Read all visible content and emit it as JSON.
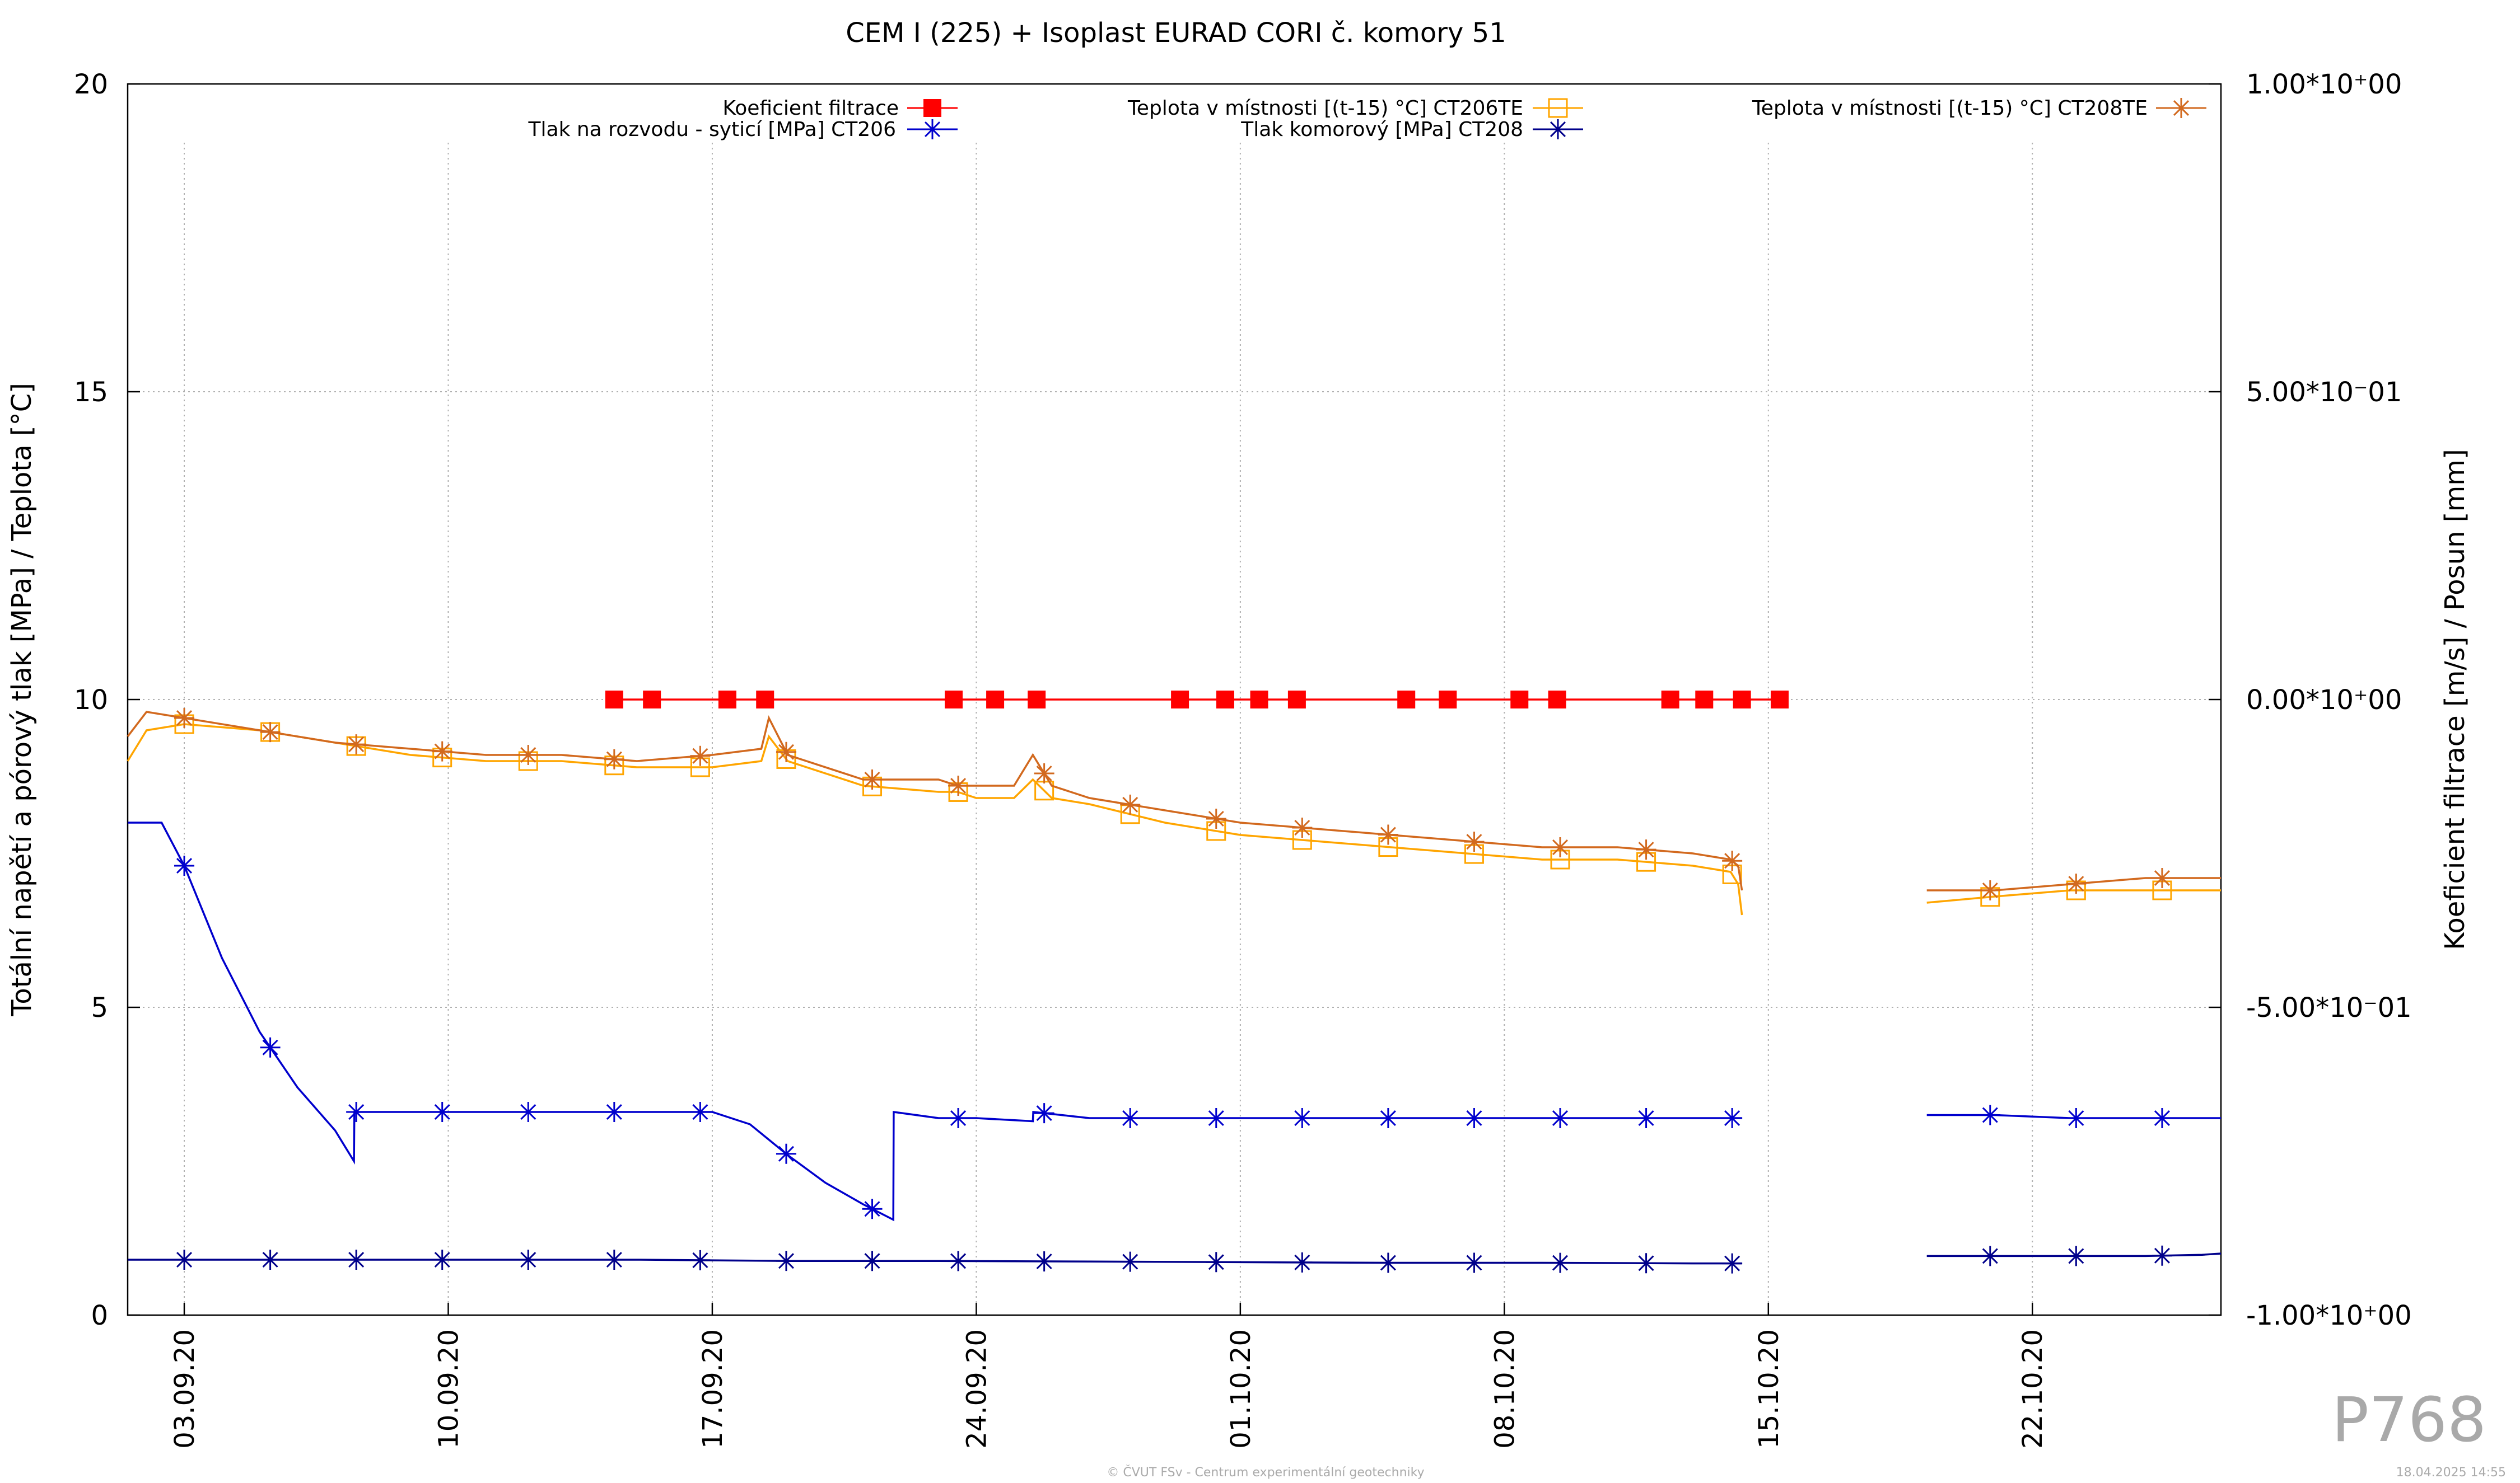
{
  "chart_data": {
    "type": "line",
    "title": "CEM I (225) + Isoplast EURAD CORI č. komory 51",
    "ylabel_left": "Totální napětí a pórový tlak [MPa] / Teplota [°C]",
    "ylabel_right": "Koeficient filtrace [m/s] / Posun [mm]",
    "ylim_left": [
      0,
      20
    ],
    "ylim_right": [
      -1,
      1
    ],
    "yticks_left": [
      "0",
      "5",
      "10",
      "15",
      "20"
    ],
    "yticks_right": [
      "-1.00*10⁺00",
      "-5.00*10⁻01",
      "0.00*10⁺00",
      "5.00*10⁻01",
      "1.00*10⁺00"
    ],
    "xlim_days": [
      -1.5,
      54.0
    ],
    "x_origin_label": "03.09.20",
    "xticks": [
      {
        "day": 0,
        "label": "03.09.20"
      },
      {
        "day": 7,
        "label": "10.09.20"
      },
      {
        "day": 14,
        "label": "17.09.20"
      },
      {
        "day": 21,
        "label": "24.09.20"
      },
      {
        "day": 28,
        "label": "01.10.20"
      },
      {
        "day": 35,
        "label": "08.10.20"
      },
      {
        "day": 42,
        "label": "15.10.20"
      },
      {
        "day": 49,
        "label": "22.10.20"
      }
    ],
    "grid": true,
    "legend_position": "top",
    "series": [
      {
        "name": "Koeficient filtrace",
        "axis": "right",
        "color": "#ff0000",
        "marker": "filled-square",
        "x": [
          11.4,
          12.4,
          14.4,
          15.4,
          20.4,
          21.5,
          22.6,
          26.4,
          27.6,
          28.5,
          29.5,
          32.4,
          33.5,
          35.4,
          36.4,
          39.4,
          40.3,
          41.3,
          42.3
        ],
        "values": [
          0,
          0,
          0,
          0,
          0,
          0,
          0,
          0,
          0,
          0,
          0,
          0,
          0,
          0,
          0,
          0,
          0,
          0,
          0
        ]
      },
      {
        "name": "Teplota v místnosti [(t-15) °C] CT206TE",
        "axis": "left",
        "color": "#ffa500",
        "marker": "open-square",
        "segments": [
          {
            "x": [
              -1.5,
              -1,
              0,
              2,
              4,
              6,
              8,
              10,
              12,
              14,
              15.3,
              15.5,
              16,
              18,
              20,
              20.5,
              21,
              22,
              22.5,
              23,
              24,
              26,
              28,
              30,
              32,
              34,
              36,
              38,
              40,
              41,
              41.2,
              41.3
            ],
            "values": [
              9.0,
              9.5,
              9.6,
              9.5,
              9.3,
              9.1,
              9.0,
              9.0,
              8.9,
              8.9,
              9.0,
              9.4,
              9.0,
              8.6,
              8.5,
              8.5,
              8.4,
              8.4,
              8.7,
              8.4,
              8.3,
              8.0,
              7.8,
              7.7,
              7.6,
              7.5,
              7.4,
              7.4,
              7.3,
              7.2,
              7.0,
              6.5
            ]
          },
          {
            "x": [
              46.2,
              48,
              50,
              52,
              54
            ],
            "values": [
              6.7,
              6.8,
              6.9,
              6.9,
              6.9
            ]
          }
        ]
      },
      {
        "name": "Teplota v místnosti [(t-15) °C] CT208TE",
        "axis": "left",
        "color": "#d2691e",
        "marker": "asterisk",
        "segments": [
          {
            "x": [
              -1.5,
              -1,
              0,
              2,
              4,
              6,
              8,
              10,
              12,
              14,
              15.3,
              15.5,
              16,
              18,
              20,
              20.5,
              21,
              22,
              22.5,
              23,
              24,
              26,
              28,
              30,
              32,
              34,
              36,
              38,
              40,
              41,
              41.2,
              41.3
            ],
            "values": [
              9.4,
              9.8,
              9.7,
              9.5,
              9.3,
              9.2,
              9.1,
              9.1,
              9.0,
              9.1,
              9.2,
              9.7,
              9.1,
              8.7,
              8.7,
              8.6,
              8.6,
              8.6,
              9.1,
              8.6,
              8.4,
              8.2,
              8.0,
              7.9,
              7.8,
              7.7,
              7.6,
              7.6,
              7.5,
              7.4,
              7.3,
              6.9
            ]
          },
          {
            "x": [
              46.2,
              48,
              50,
              52,
              54
            ],
            "values": [
              6.9,
              6.9,
              7.0,
              7.1,
              7.1
            ]
          }
        ]
      },
      {
        "name": "Tlak na rozvodu - syticí [MPa] CT206",
        "axis": "left",
        "color": "#0000cd",
        "marker": "asterisk",
        "segments": [
          {
            "x": [
              -1.5,
              -0.6,
              0,
              1,
              2,
              3,
              4,
              4.5,
              4.51,
              6,
              8,
              10,
              12,
              14,
              15,
              16,
              17,
              18,
              18.8,
              18.81,
              20,
              21,
              22.5,
              22.51,
              24,
              28,
              32,
              36,
              40,
              41.3
            ],
            "values": [
              8.0,
              8.0,
              7.3,
              5.8,
              4.6,
              3.7,
              3.0,
              2.5,
              3.3,
              3.3,
              3.3,
              3.3,
              3.3,
              3.3,
              3.1,
              2.6,
              2.15,
              1.8,
              1.55,
              3.3,
              3.2,
              3.2,
              3.15,
              3.3,
              3.2,
              3.2,
              3.2,
              3.2,
              3.2,
              3.2
            ]
          },
          {
            "x": [
              46.2,
              48,
              50,
              52,
              54
            ],
            "values": [
              3.25,
              3.25,
              3.2,
              3.2,
              3.2
            ]
          }
        ]
      },
      {
        "name": "Tlak komorový [MPa] CT208",
        "axis": "left",
        "color": "#00008b",
        "marker": "asterisk",
        "segments": [
          {
            "x": [
              -1.5,
              0,
              4,
              8,
              12,
              16,
              20,
              24,
              28,
              32,
              36,
              40,
              41.3
            ],
            "values": [
              0.9,
              0.9,
              0.9,
              0.9,
              0.9,
              0.88,
              0.88,
              0.87,
              0.86,
              0.85,
              0.85,
              0.84,
              0.84
            ]
          },
          {
            "x": [
              46.2,
              48,
              50,
              52,
              53.5,
              54
            ],
            "values": [
              0.96,
              0.96,
              0.96,
              0.96,
              0.98,
              1.0
            ]
          }
        ]
      }
    ]
  },
  "watermark": "P768",
  "footer": {
    "credit": "© ČVUT FSv - Centrum experimentální geotechniky",
    "date": "18.04.2025 14:55"
  }
}
